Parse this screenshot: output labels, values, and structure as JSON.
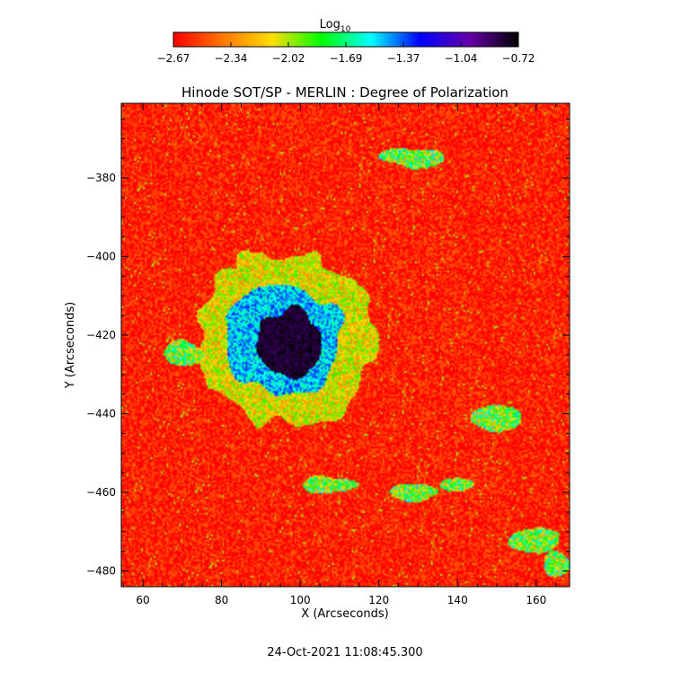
{
  "colorbar": {
    "label": "Log",
    "label_sub": "10",
    "min": -2.67,
    "max": -0.72,
    "tick_labels": [
      "-2.67",
      "-2.34",
      "-2.02",
      "-1.69",
      "-1.37",
      "-1.04",
      "-0.72"
    ],
    "colormap": [
      "#ff0000",
      "#ff7700",
      "#ffdd00",
      "#00ff00",
      "#00ffff",
      "#0000ff",
      "#6600aa",
      "#000000"
    ]
  },
  "chart_data": {
    "type": "heatmap",
    "title": "Hinode SOT/SP - MERLIN : Degree of Polarization",
    "xlabel": "X (Arcseconds)",
    "ylabel": "Y (Arcseconds)",
    "xlim": [
      54.5,
      168.5
    ],
    "ylim": [
      -484,
      -361
    ],
    "x_ticks": [
      60,
      80,
      100,
      120,
      140,
      160
    ],
    "y_ticks": [
      -380,
      -400,
      -420,
      -440,
      -460,
      -480
    ],
    "x_tick_labels": [
      "60",
      "80",
      "100",
      "120",
      "140",
      "160"
    ],
    "y_tick_labels": [
      "-380",
      "-400",
      "-420",
      "-440",
      "-460",
      "-480"
    ],
    "value_range": [
      -2.67,
      -0.72
    ],
    "features": [
      {
        "name": "sunspot umbra",
        "center": [
          96,
          -421
        ],
        "radius": 8,
        "value": -0.8
      },
      {
        "name": "sunspot penumbra",
        "center": [
          97,
          -422
        ],
        "radius": 14,
        "value": -1.5
      },
      {
        "name": "plage",
        "center": [
          97,
          -422
        ],
        "radius": 22,
        "value": -2.1
      },
      {
        "name": "quiet sun background",
        "value": -2.6
      }
    ],
    "timestamp": "24-Oct-2021 11:08:45.300"
  }
}
